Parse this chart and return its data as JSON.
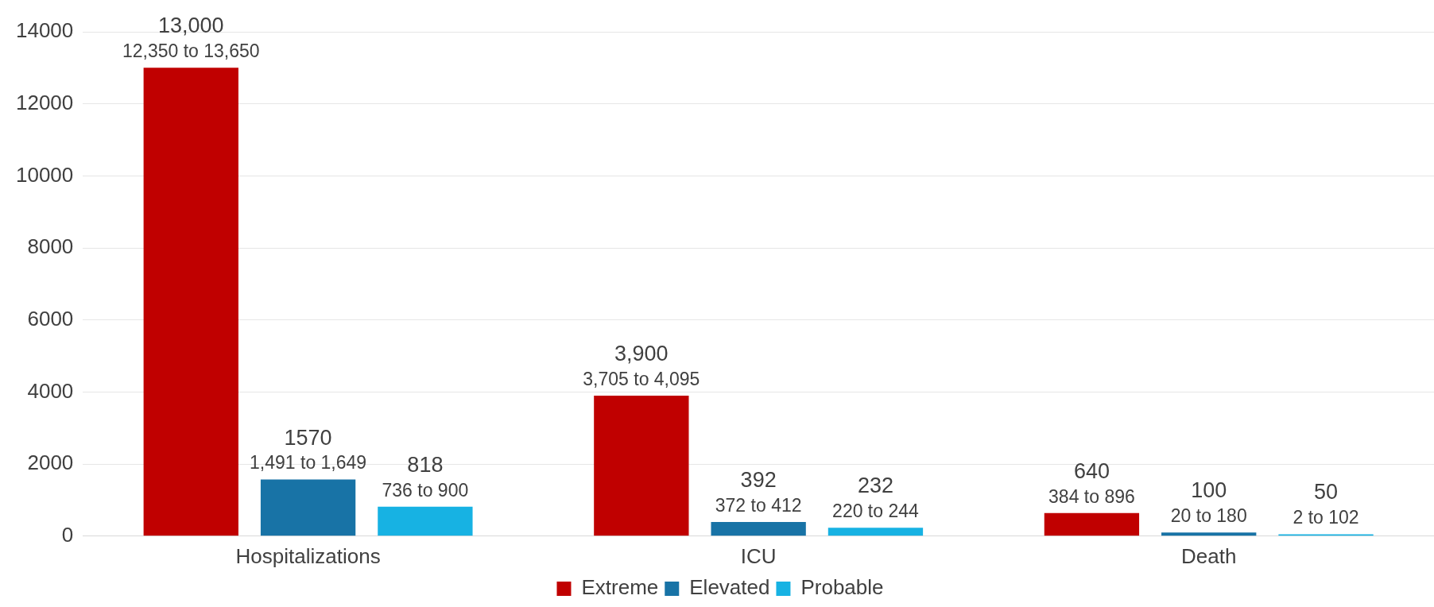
{
  "chart_data": {
    "type": "bar",
    "categories": [
      "Hospitalizations",
      "ICU",
      "Death"
    ],
    "series": [
      {
        "name": "Extreme",
        "color": "#c00000",
        "values": [
          13000,
          3900,
          640
        ],
        "value_labels": [
          "13,000\n12,350 to 13,650",
          "3,900\n3,705 to 4,095",
          "640\n384 to 896"
        ]
      },
      {
        "name": "Elevated",
        "color": "#1873a6",
        "values": [
          1570,
          392,
          100
        ],
        "value_labels": [
          "1570\n1,491 to 1,649",
          "392\n372 to 412",
          "100\n20 to 180"
        ]
      },
      {
        "name": "Probable",
        "color": "#17b2e3",
        "values": [
          818,
          232,
          50
        ],
        "value_labels": [
          "818\n736 to 900",
          "232\n220 to 244",
          "50\n2 to 102"
        ]
      }
    ],
    "ylim": [
      0,
      14000
    ],
    "yticks": [
      0,
      2000,
      4000,
      6000,
      8000,
      10000,
      12000,
      14000
    ],
    "grid": "y",
    "legend": "bottom"
  }
}
